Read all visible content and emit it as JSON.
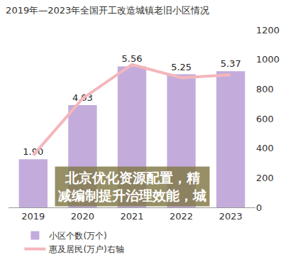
{
  "chart_data": {
    "type": "bar",
    "title": "2019年—2023年全国开工改造城镇老旧小区情况",
    "categories": [
      "2019",
      "2020",
      "2021",
      "2022",
      "2023"
    ],
    "series": [
      {
        "name": "小区个数(万个)",
        "type": "bar",
        "color": "#c3acdb",
        "values": [
          1.9,
          4.03,
          5.56,
          5.25,
          5.37
        ],
        "value_labels": [
          "1.90",
          "4.03",
          "5.56",
          "5.25",
          "5.37"
        ],
        "data_labels": true
      },
      {
        "name": "惠及居民(万户)右轴",
        "type": "line",
        "color": "#f4b6bb",
        "line_style": "solid",
        "axis": "y2",
        "values": [
          352,
          736,
          965,
          876,
          897
        ]
      }
    ],
    "ylim": [
      0,
      7
    ],
    "y2lim": [
      0,
      1200
    ],
    "y2ticks": [
      0,
      200,
      400,
      600,
      800,
      1000,
      1200
    ],
    "grid": false,
    "legend": "bottom",
    "annotations": [
      "北京优化资源配置，精减编制提升治理效能，城"
    ]
  }
}
